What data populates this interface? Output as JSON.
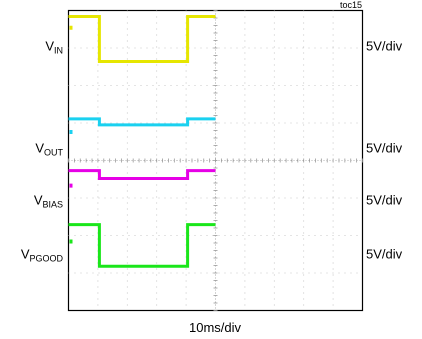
{
  "figure_id": "toc15",
  "chart_data": {
    "type": "line",
    "title": "",
    "xlabel": "10ms/div",
    "ylabel": "",
    "x_divisions": 10,
    "y_divisions": 8,
    "grid": true,
    "xlim": [
      0,
      10
    ],
    "series": [
      {
        "name": "VIN",
        "name_main": "V",
        "name_sub": "IN",
        "scale": "5V/div",
        "color": "#e6e600",
        "x": [
          0,
          1.05,
          1.05,
          4.05,
          4.05,
          5.0
        ],
        "y": [
          7.84,
          7.84,
          6.64,
          6.64,
          7.84,
          7.84
        ]
      },
      {
        "name": "VOUT",
        "name_main": "V",
        "name_sub": "OUT",
        "scale": "5V/div",
        "color": "#1ad1f0",
        "x": [
          0,
          1.05,
          1.05,
          4.05,
          4.05,
          5.0
        ],
        "y": [
          5.11,
          5.11,
          4.95,
          4.95,
          5.11,
          5.11
        ]
      },
      {
        "name": "VBIAS",
        "name_main": "V",
        "name_sub": "BIAS",
        "scale": "5V/div",
        "color": "#e600e6",
        "x": [
          0,
          1.05,
          1.05,
          4.05,
          4.05,
          5.0
        ],
        "y": [
          3.73,
          3.73,
          3.52,
          3.52,
          3.73,
          3.73
        ]
      },
      {
        "name": "VPGOOD",
        "name_main": "V",
        "name_sub": "PGOOD",
        "scale": "5V/div",
        "color": "#1ae61a",
        "x": [
          0,
          1.05,
          1.05,
          4.05,
          4.05,
          5.0
        ],
        "y": [
          2.29,
          2.29,
          1.18,
          1.18,
          2.29,
          2.29
        ]
      }
    ]
  }
}
